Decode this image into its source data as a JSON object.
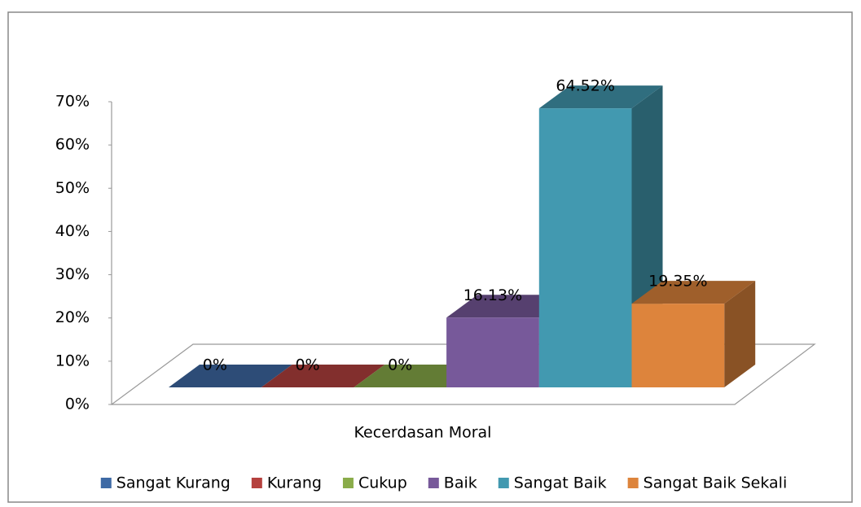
{
  "chart_data": {
    "type": "bar3d",
    "categories": [
      "Kecerdasan Moral"
    ],
    "series": [
      {
        "name": "Sangat Kurang",
        "color": "#3e6aa5",
        "values": [
          0
        ],
        "value_labels": [
          "0%"
        ]
      },
      {
        "name": "Kurang",
        "color": "#b5413e",
        "values": [
          0
        ],
        "value_labels": [
          "0%"
        ]
      },
      {
        "name": "Cukup",
        "color": "#8aac4a",
        "values": [
          0
        ],
        "value_labels": [
          "0%"
        ]
      },
      {
        "name": "Baik",
        "color": "#77599a",
        "values": [
          16.13
        ],
        "value_labels": [
          "16.13%"
        ]
      },
      {
        "name": "Sangat Baik",
        "color": "#4299b0",
        "values": [
          64.52
        ],
        "value_labels": [
          "64.52%"
        ]
      },
      {
        "name": "Sangat Baik Sekali",
        "color": "#dd843c",
        "values": [
          19.35
        ],
        "value_labels": [
          "19.35%"
        ]
      }
    ],
    "ylim": [
      0,
      70
    ],
    "yticks": [
      {
        "value": 0,
        "label": "0%"
      },
      {
        "value": 10,
        "label": "10%"
      },
      {
        "value": 20,
        "label": "20%"
      },
      {
        "value": 30,
        "label": "30%"
      },
      {
        "value": 40,
        "label": "40%"
      },
      {
        "value": 50,
        "label": "50%"
      },
      {
        "value": 60,
        "label": "60%"
      },
      {
        "value": 70,
        "label": "70%"
      }
    ],
    "legend": "bottom"
  }
}
